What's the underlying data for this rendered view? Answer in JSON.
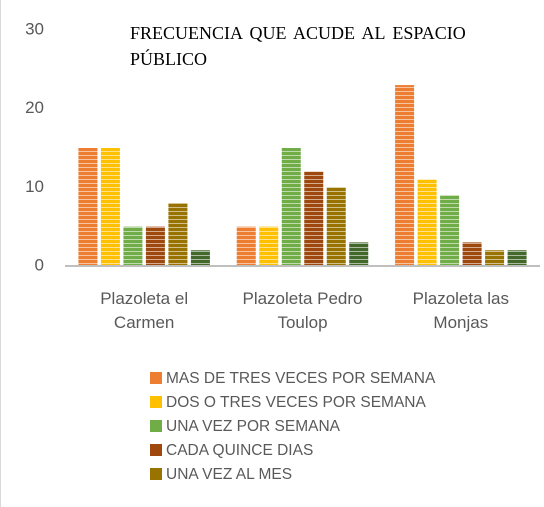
{
  "chart_data": {
    "type": "bar",
    "title": "FRECUENCIA QUE ACUDE AL ESPACIO PÚBLICO",
    "categories": [
      "Plazoleta el Carmen",
      "Plazoleta Pedro Toulop",
      "Plazoleta las Monjas"
    ],
    "series": [
      {
        "name": "MAS DE TRES VECES POR SEMANA",
        "color": "#ed7d31",
        "values": [
          15,
          5,
          23
        ]
      },
      {
        "name": "DOS O TRES VECES POR SEMANA",
        "color": "#ffc000",
        "values": [
          15,
          5,
          11
        ]
      },
      {
        "name": "UNA VEZ POR SEMANA",
        "color": "#70ad47",
        "values": [
          5,
          15,
          9
        ]
      },
      {
        "name": "CADA QUINCE DIAS",
        "color": "#9e480e",
        "values": [
          5,
          12,
          3
        ]
      },
      {
        "name": "UNA VEZ AL MES",
        "color": "#997300",
        "values": [
          8,
          10,
          2
        ]
      },
      {
        "color": "#43682b",
        "values": [
          2,
          3,
          2
        ]
      }
    ],
    "ylim": [
      0,
      30
    ],
    "yticks": [
      0,
      10,
      20,
      30
    ],
    "grid": false
  }
}
